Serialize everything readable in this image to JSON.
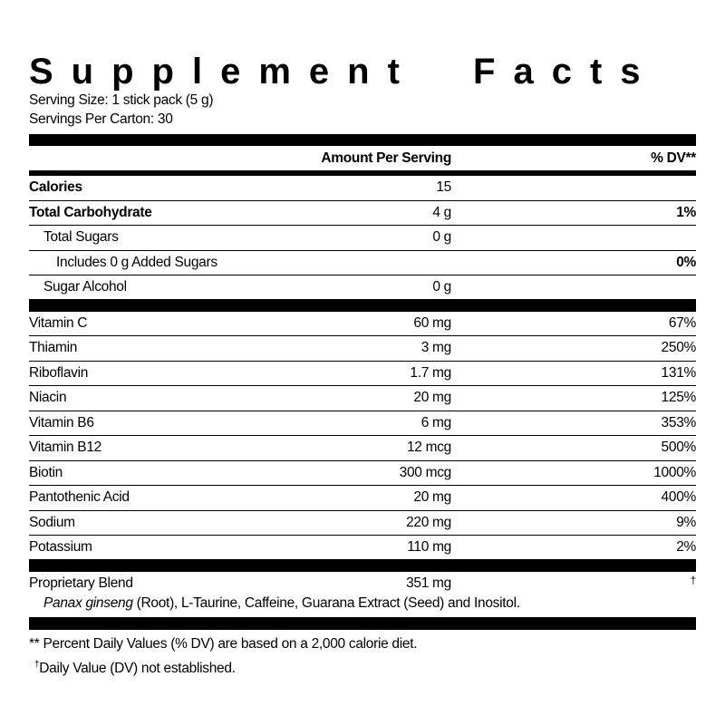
{
  "title": "Supplement Facts",
  "serving_size": "Serving Size: 1 stick pack (5 g)",
  "servings_per": "Servings Per Carton: 30",
  "header": {
    "amount": "Amount Per Serving",
    "dv": "% DV**"
  },
  "macro_rows": [
    {
      "name": "Calories",
      "amount": "15",
      "dv": ""
    },
    {
      "name": "Total Carbohydrate",
      "amount": "4 g",
      "dv": "1%"
    },
    {
      "name": "Total Sugars",
      "amount": "0 g",
      "dv": ""
    },
    {
      "name": "Includes 0 g Added Sugars",
      "amount": "",
      "dv": "0%"
    },
    {
      "name": "Sugar Alcohol",
      "amount": "0 g",
      "dv": ""
    }
  ],
  "nutrient_rows": [
    {
      "name": "Vitamin C",
      "amount": "60 mg",
      "dv": "67%"
    },
    {
      "name": "Thiamin",
      "amount": "3 mg",
      "dv": "250%"
    },
    {
      "name": "Riboflavin",
      "amount": "1.7 mg",
      "dv": "131%"
    },
    {
      "name": "Niacin",
      "amount": "20 mg",
      "dv": "125%"
    },
    {
      "name": "Vitamin B6",
      "amount": "6 mg",
      "dv": "353%"
    },
    {
      "name": "Vitamin B12",
      "amount": "12 mcg",
      "dv": "500%"
    },
    {
      "name": "Biotin",
      "amount": "300 mcg",
      "dv": "1000%"
    },
    {
      "name": "Pantothenic Acid",
      "amount": "20 mg",
      "dv": "400%"
    },
    {
      "name": "Sodium",
      "amount": "220 mg",
      "dv": "9%"
    },
    {
      "name": "Potassium",
      "amount": "110 mg",
      "dv": "2%"
    }
  ],
  "blend": {
    "name": "Proprietary Blend",
    "amount": "351 mg",
    "dv": "†",
    "ingredient_italic": "Panax ginseng",
    "ingredients_rest": " (Root), L-Taurine, Caffeine, Guarana Extract (Seed) and Inositol."
  },
  "footnotes": {
    "dv_note": "** Percent Daily Values (% DV) are based on a 2,000 calorie diet.",
    "dagger": "†",
    "dagger_note": "Daily Value (DV) not established."
  }
}
